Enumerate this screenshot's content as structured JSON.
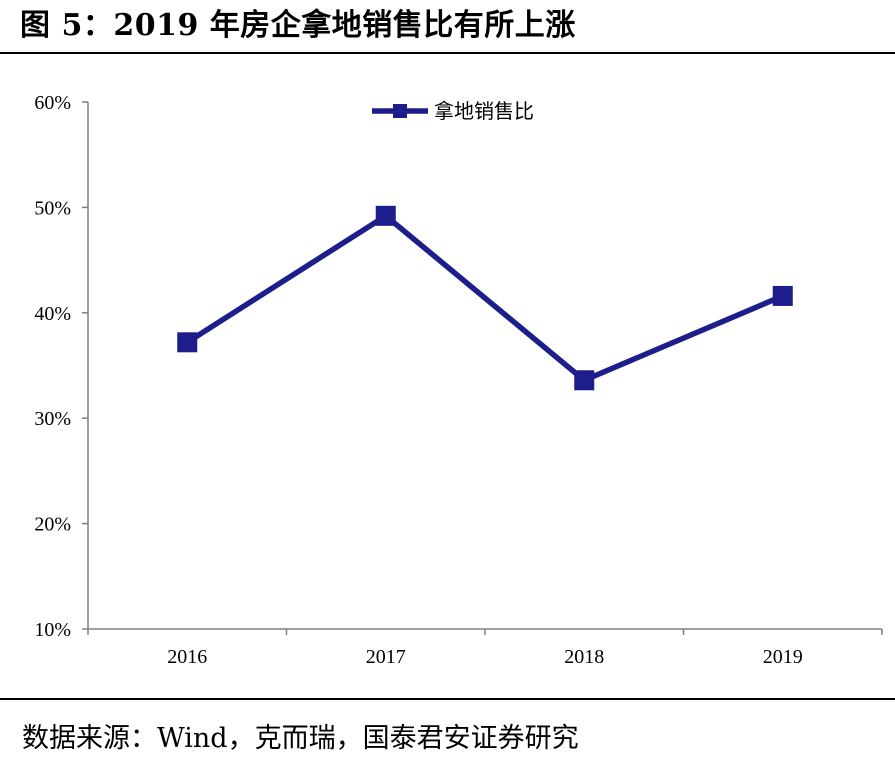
{
  "title": "图 5：2019 年房企拿地销售比有所上涨",
  "source": "数据来源：Wind，克而瑞，国泰君安证券研究",
  "colors": {
    "series": "#1d1d8c",
    "axis": "#808080",
    "text": "#000000"
  },
  "chart_data": {
    "type": "line",
    "categories": [
      "2016",
      "2017",
      "2018",
      "2019"
    ],
    "series": [
      {
        "name": "拿地销售比",
        "values": [
          0.372,
          0.492,
          0.336,
          0.416
        ],
        "marker": "square",
        "color": "#1d1d8c"
      }
    ],
    "ylim": [
      0.1,
      0.6
    ],
    "yticks": [
      0.1,
      0.2,
      0.3,
      0.4,
      0.5,
      0.6
    ],
    "ytick_labels": [
      "10%",
      "20%",
      "30%",
      "40%",
      "50%",
      "60%"
    ],
    "grid": false,
    "legend_position": "top-center"
  }
}
